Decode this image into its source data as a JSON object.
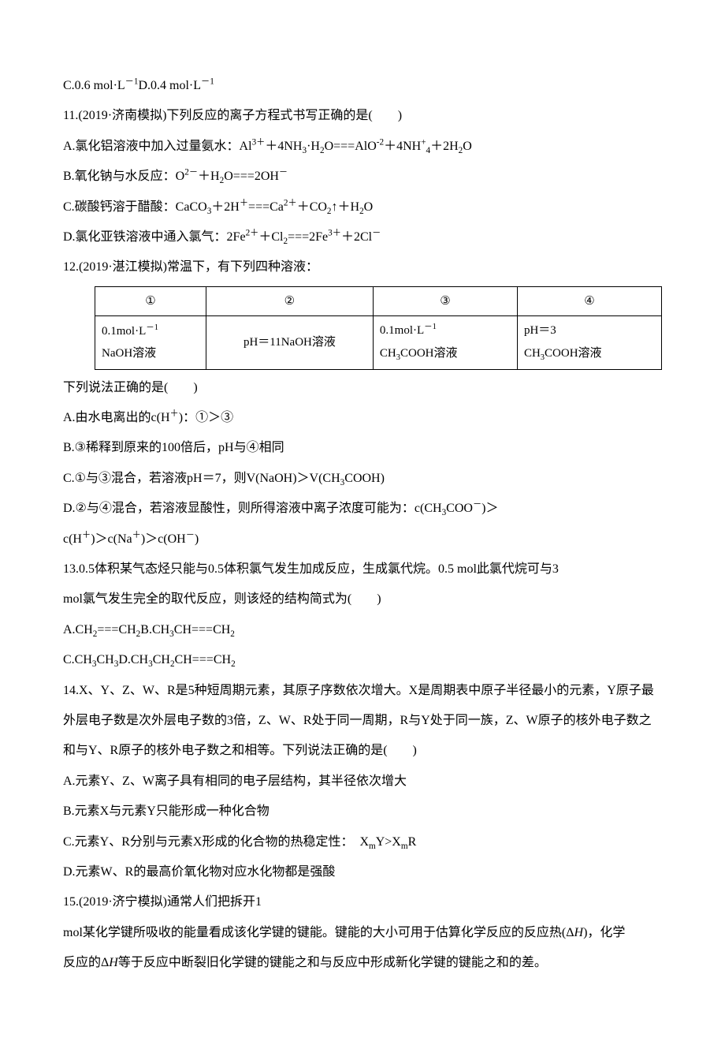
{
  "l1_a": "C.0.6 mol·L",
  "l1_b": "D.0.4 mol·L",
  "q11": "11.(2019·济南模拟)下列反应的离子方程式书写正确的是(　　)",
  "q11a_a": "A.氯化铝溶液中加入过量氨水：Al",
  "q11a_b": "＋4NH",
  "q11a_c": "·H",
  "q11a_d": "O===AlO",
  "q11a_e": "＋4NH",
  "q11a_f": "＋2H",
  "q11a_g": "O",
  "q11b_a": "B.氧化钠与水反应：O",
  "q11b_b": "＋H",
  "q11b_c": "O===2OH",
  "q11c_a": "C.碳酸钙溶于醋酸：CaCO",
  "q11c_b": "＋2H",
  "q11c_c": "===Ca",
  "q11c_d": "＋CO",
  "q11c_e": "↑＋H",
  "q11c_f": "O",
  "q11d_a": "D.氯化亚铁溶液中通入氯气：2Fe",
  "q11d_b": "＋Cl",
  "q11d_c": "===2Fe",
  "q11d_d": "＋2Cl",
  "q12": "12.(2019·湛江模拟)常温下，有下列四种溶液：",
  "table": {
    "r1c1": "①",
    "r1c2": "②",
    "r1c3": "③",
    "r1c4": "④",
    "r2c1_a": "0.1mol·L",
    "r2c1_b": "NaOH溶液",
    "r2c2": "pH＝11NaOH溶液",
    "r2c3_a": "0.1mol·L",
    "r2c3_b": "CH",
    "r2c3_c": "COOH溶液",
    "r2c4_a": "pH＝3",
    "r2c4_b": "CH",
    "r2c4_c": "COOH溶液"
  },
  "q12p": "下列说法正确的是(　　)",
  "q12a_a": "A.由水电离出的c(H",
  "q12a_b": ")：①＞③",
  "q12b": "B.③稀释到原来的100倍后，pH与④相同",
  "q12c_a": "C.①与③混合，若溶液pH＝7，则V(NaOH)＞V(CH",
  "q12c_b": "COOH)",
  "q12d_a": "D.②与④混合，若溶液显酸性，则所得溶液中离子浓度可能为：c(CH",
  "q12d_b": "COO",
  "q12d_c": ")＞",
  "q12d2_a": "c(H",
  "q12d2_b": ")＞c(Na",
  "q12d2_c": ")＞c(OH",
  "q12d2_d": ")",
  "q13a": "13.0.5体积某气态烃只能与0.5体积氯气发生加成反应，生成氯代烷。0.5 mol此氯代烷可与3",
  "q13b": "mol氯气发生完全的取代反应，则该烃的结构简式为(　　)",
  "q13opt1_a": "A.CH",
  "q13opt1_b": "===CH",
  "q13opt1_c": "B.CH",
  "q13opt1_d": "CH===CH",
  "q13opt2_a": "C.CH",
  "q13opt2_b": "CH",
  "q13opt2_c": "D.CH",
  "q13opt2_d": "CH",
  "q13opt2_e": "CH===CH",
  "q14a": "14.X、Y、Z、W、R是5种短周期元素，其原子序数依次增大。X是周期表中原子半径最小的元素，Y原子最",
  "q14b": "外层电子数是次外层电子数的3倍，Z、W、R处于同一周期，R与Y处于同一族，Z、W原子的核外电子数之",
  "q14c": "和与Y、R原子的核外电子数之和相等。下列说法正确的是(　　)",
  "q14A": "A.元素Y、Z、W离子具有相同的电子层结构，其半径依次增大",
  "q14B": "B.元素X与元素Y只能形成一种化合物",
  "q14C_a": "C.元素Y、R分别与元素X形成的化合物的热稳定性：　X",
  "q14C_b": "Y>X",
  "q14C_c": "R",
  "q14D": "D.元素W、R的最高价氧化物对应水化物都是强酸",
  "q15a": "15.(2019·济宁模拟)通常人们把拆开1",
  "q15b_a": "mol某化学键所吸收的能量看成该化学键的键能。键能的大小可用于估算化学反应的反应热(Δ",
  "q15b_b": "H",
  "q15b_c": ")，化学",
  "q15c_a": "反应的Δ",
  "q15c_b": "H",
  "q15c_c": "等于反应中断裂旧化学键的键能之和与反应中形成新化学键的键能之和的差。"
}
